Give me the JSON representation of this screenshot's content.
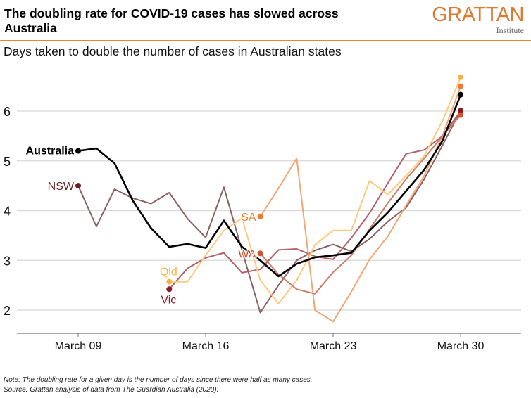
{
  "header": {
    "title": "The doubling rate for COVID-19 cases has slowed across Australia",
    "logo_main": "GRATTAN",
    "logo_sub": "Institute",
    "subtitle": "Days taken to double the number of cases in Australian states"
  },
  "footer": {
    "note": "Note: The doubling rate for a given day is the number of days since there were half as many cases.",
    "source": "Source: Grattan analysis of data from The Guardian Australia (2020)."
  },
  "chart_data": {
    "type": "line",
    "title": "",
    "xlabel": "",
    "ylabel": "",
    "x_unit": "day of March 2020",
    "xlim": [
      6.5,
      33.5
    ],
    "ylim": [
      1.55,
      6.9
    ],
    "x_ticks": [
      {
        "day": 9,
        "label": "March 09"
      },
      {
        "day": 16,
        "label": "March 16"
      },
      {
        "day": 23,
        "label": "March 23"
      },
      {
        "day": 30,
        "label": "March 30"
      }
    ],
    "y_ticks": [
      2,
      3,
      4,
      5,
      6
    ],
    "grid": true,
    "series": [
      {
        "name": "NSW",
        "color": "#8c6060",
        "dot": "#6b1f24",
        "width": 2,
        "x": [
          9,
          10,
          11,
          12,
          13,
          14,
          15,
          16,
          17,
          18,
          19,
          20,
          21,
          22,
          23,
          24,
          25,
          26,
          27,
          28,
          29,
          30
        ],
        "y": [
          4.5,
          3.68,
          4.43,
          4.25,
          4.14,
          4.36,
          3.84,
          3.46,
          4.47,
          3.2,
          1.95,
          2.5,
          3.0,
          3.2,
          3.32,
          3.18,
          3.43,
          3.78,
          4.06,
          4.63,
          5.31,
          6.01
        ]
      },
      {
        "name": "Vic",
        "color": "#b06068",
        "dot": "#8b1a22",
        "width": 2,
        "x": [
          14,
          15,
          16,
          17,
          18,
          19,
          20,
          21,
          22,
          23,
          24,
          25,
          26,
          27,
          28,
          29,
          30
        ],
        "y": [
          2.42,
          2.84,
          3.05,
          3.15,
          2.75,
          2.82,
          3.21,
          3.23,
          3.08,
          3.02,
          3.45,
          3.95,
          4.55,
          5.14,
          5.22,
          5.5,
          6.0
        ]
      },
      {
        "name": "Qld",
        "color": "#fdca80",
        "dot": "#fbb444",
        "width": 2,
        "x": [
          14,
          15,
          16,
          17,
          18,
          19,
          20,
          21,
          22,
          23,
          24,
          25,
          26,
          27,
          28,
          29,
          30
        ],
        "y": [
          2.57,
          2.57,
          3.1,
          3.6,
          3.85,
          2.6,
          2.13,
          2.6,
          3.31,
          3.6,
          3.6,
          4.6,
          4.32,
          4.7,
          5.1,
          5.8,
          6.68
        ]
      },
      {
        "name": "SA",
        "color": "#f2a674",
        "dot": "#f07a30",
        "width": 2,
        "x": [
          19,
          20,
          21,
          22,
          23,
          24,
          25,
          26,
          27,
          28,
          29,
          30
        ],
        "y": [
          3.88,
          4.45,
          5.05,
          2.0,
          1.77,
          2.37,
          3.02,
          3.48,
          4.1,
          4.7,
          5.5,
          6.5
        ]
      },
      {
        "name": "WA",
        "color": "#cc7e6a",
        "dot": "#d4522e",
        "width": 2,
        "x": [
          19,
          20,
          21,
          22,
          23,
          24,
          25,
          26,
          27,
          28,
          29,
          30
        ],
        "y": [
          3.14,
          2.72,
          2.42,
          2.33,
          2.76,
          3.1,
          3.63,
          4.15,
          4.63,
          5.05,
          5.5,
          5.92
        ]
      },
      {
        "name": "Australia",
        "color": "#000000",
        "dot": "#000000",
        "width": 2.6,
        "x": [
          9,
          10,
          11,
          12,
          13,
          14,
          15,
          16,
          17,
          18,
          19,
          20,
          21,
          22,
          23,
          24,
          25,
          26,
          27,
          28,
          29,
          30
        ],
        "y": [
          5.2,
          5.25,
          4.95,
          4.2,
          3.65,
          3.27,
          3.33,
          3.25,
          3.8,
          3.27,
          3.0,
          2.68,
          2.93,
          3.06,
          3.1,
          3.15,
          3.6,
          3.96,
          4.39,
          4.82,
          5.4,
          6.33
        ]
      }
    ],
    "series_labels": [
      {
        "series": "Australia",
        "color": "#000000",
        "bold": true
      },
      {
        "series": "NSW",
        "color": "#6b1f24"
      },
      {
        "series": "Qld",
        "color": "#fbb444"
      },
      {
        "series": "Vic",
        "color": "#8b1a22"
      },
      {
        "series": "SA",
        "color": "#f07a30"
      },
      {
        "series": "WA",
        "color": "#d4522e"
      }
    ]
  }
}
